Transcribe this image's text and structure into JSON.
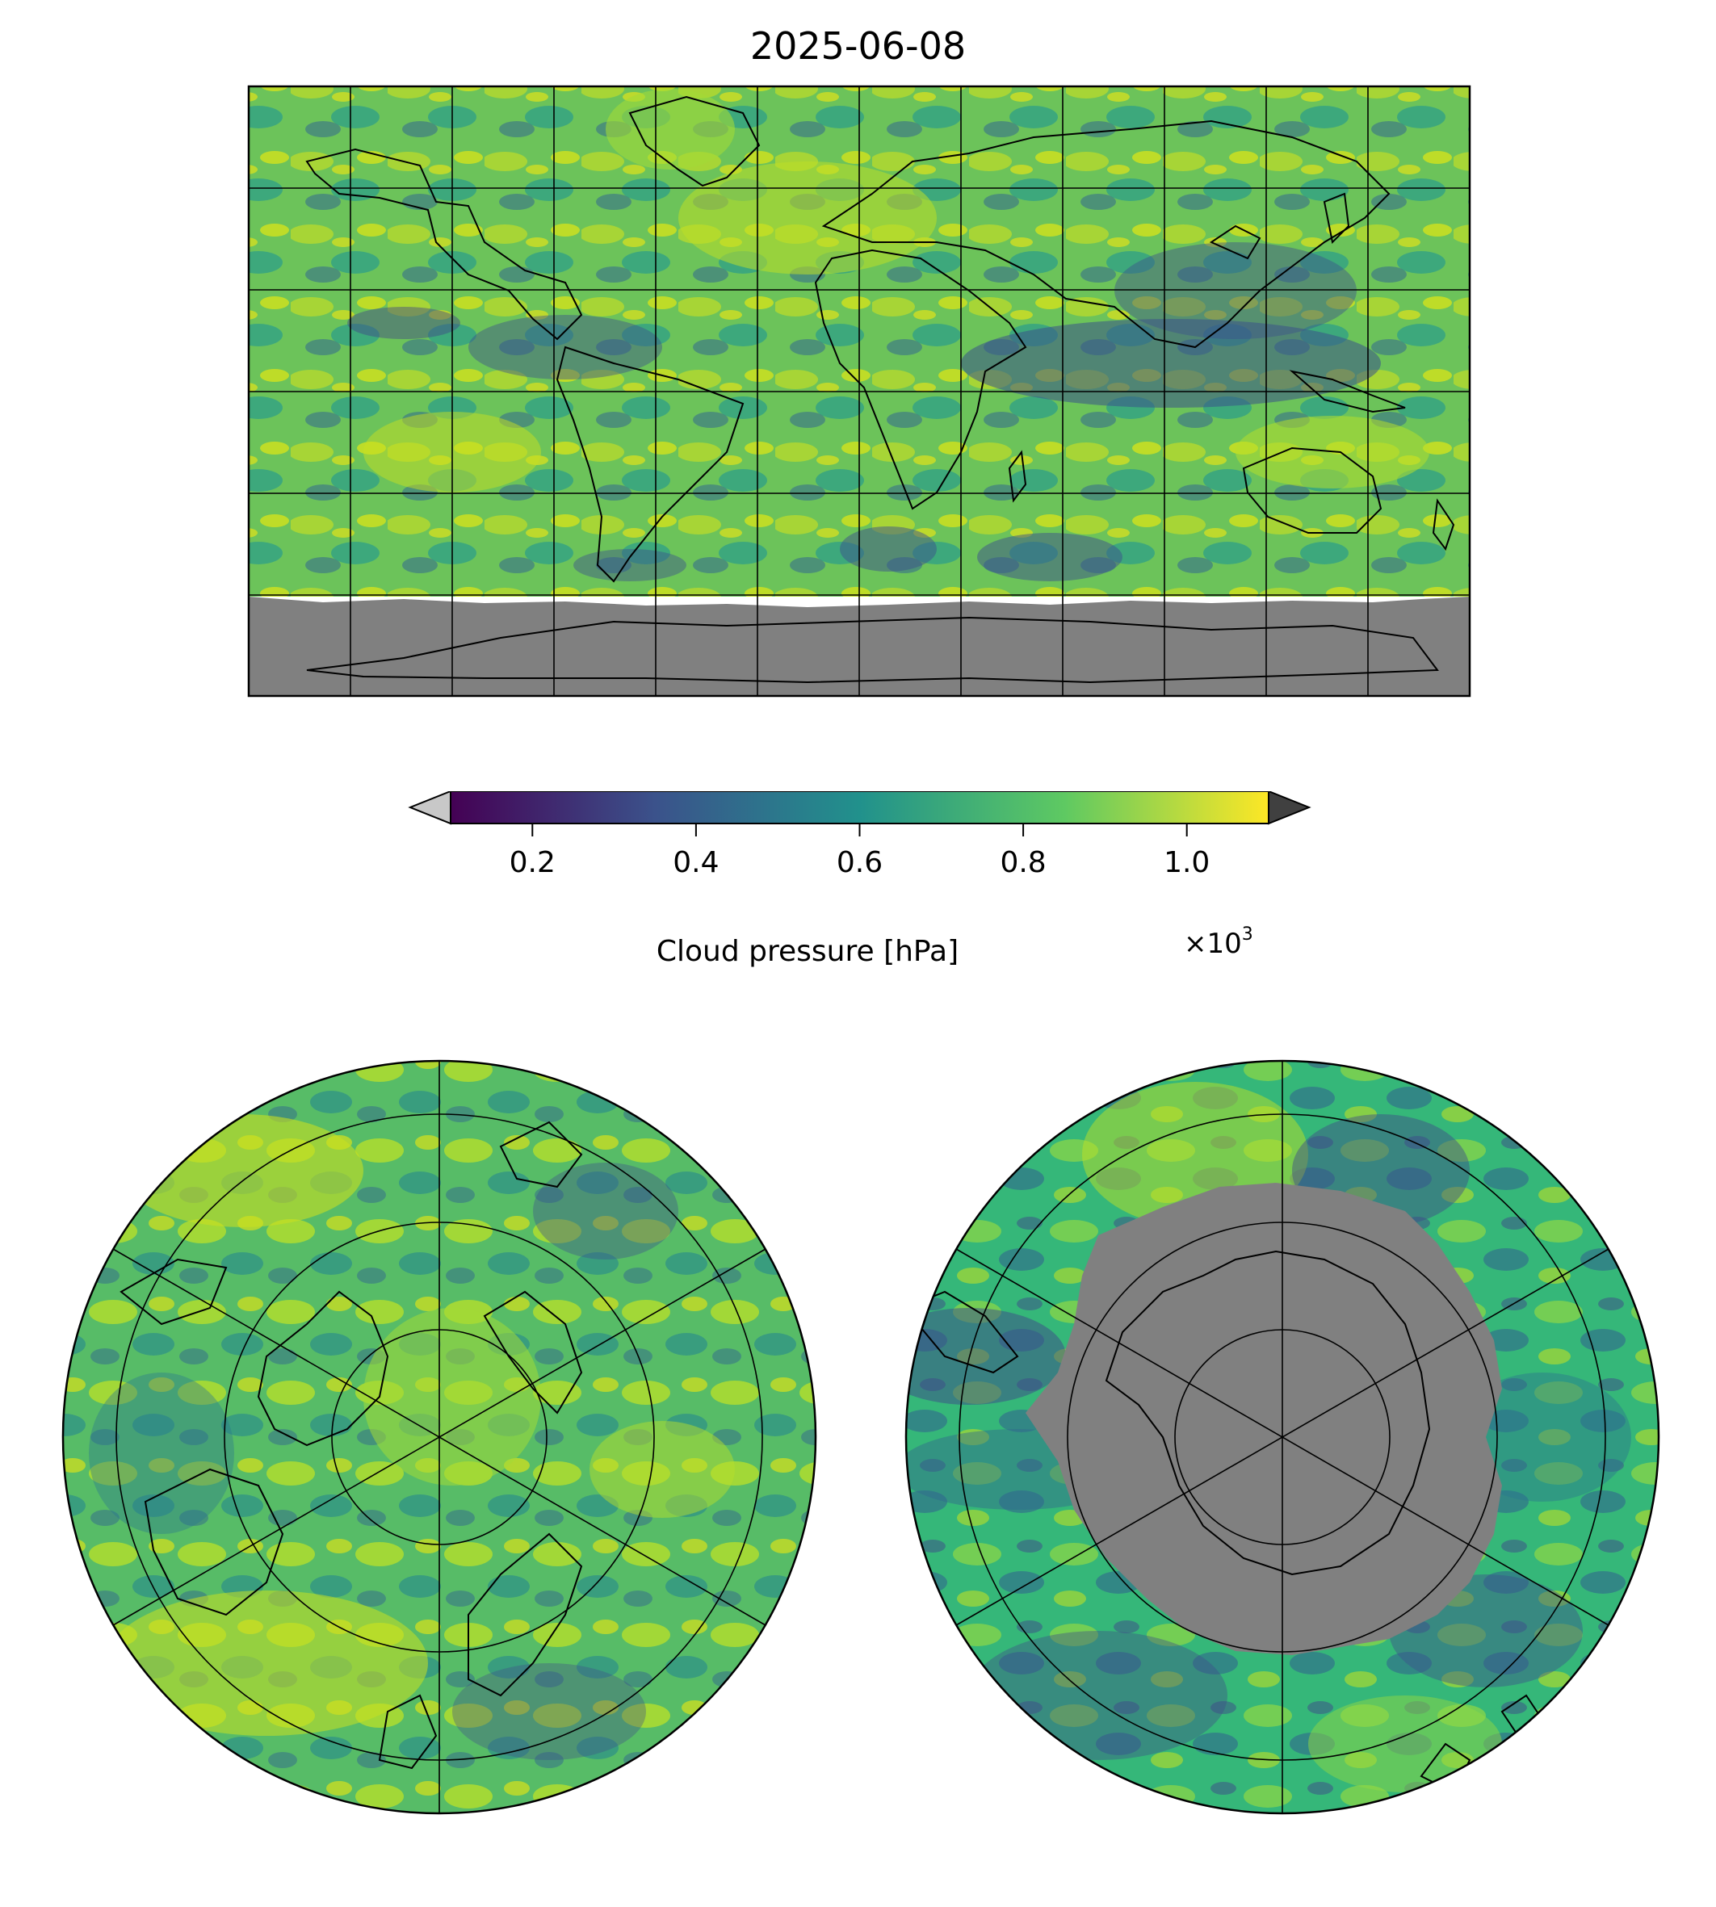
{
  "title": "2025-06-08",
  "colorbar": {
    "label": "Cloud pressure [hPa]",
    "multiplier": "×10",
    "multiplier_exp": "3",
    "ticks": [
      "0.2",
      "0.4",
      "0.6",
      "0.8",
      "1.0"
    ],
    "tick_values": [
      0.2,
      0.4,
      0.6,
      0.8,
      1.0
    ],
    "range": [
      0.1,
      1.1
    ],
    "colormap": [
      "#440154",
      "#3b528b",
      "#21918c",
      "#5ec962",
      "#fde725"
    ],
    "under_color": "#c8c8c8",
    "over_color": "#404040"
  },
  "colors": {
    "no_data": "#808080",
    "coastline": "#000000",
    "gridline": "#000000"
  },
  "panels": {
    "global": {
      "projection": "plate-carree",
      "gridlines": true
    },
    "north_pole": {
      "projection": "north-polar-stereographic",
      "gridlines": true
    },
    "south_pole": {
      "projection": "south-polar-stereographic",
      "gridlines": true
    }
  }
}
